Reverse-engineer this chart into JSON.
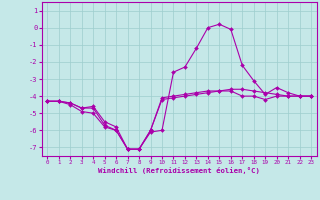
{
  "xlabel": "Windchill (Refroidissement éolien,°C)",
  "x_ticks": [
    0,
    1,
    2,
    3,
    4,
    5,
    6,
    7,
    8,
    9,
    10,
    11,
    12,
    13,
    14,
    15,
    16,
    17,
    18,
    19,
    20,
    21,
    22,
    23
  ],
  "ylim": [
    -7.5,
    1.5
  ],
  "xlim": [
    -0.5,
    23.5
  ],
  "yticks": [
    1,
    0,
    -1,
    -2,
    -3,
    -4,
    -5,
    -6,
    -7
  ],
  "bg_color": "#c5e8e8",
  "line_color": "#aa00aa",
  "grid_color": "#9ecece",
  "axis_color": "#aa00aa",
  "line1_x": [
    0,
    1,
    2,
    3,
    4,
    5,
    6,
    7,
    8,
    9,
    10,
    11,
    12,
    13,
    14,
    15,
    16,
    17,
    18,
    19,
    20,
    21,
    22,
    23
  ],
  "line1_y": [
    -4.3,
    -4.3,
    -4.4,
    -4.7,
    -4.6,
    -5.5,
    -5.8,
    -7.1,
    -7.1,
    -6.1,
    -6.0,
    -2.6,
    -2.3,
    -1.2,
    0.0,
    0.2,
    -0.1,
    -2.2,
    -3.1,
    -3.9,
    -3.5,
    -3.8,
    -4.0,
    -4.0
  ],
  "line2_x": [
    0,
    1,
    2,
    3,
    4,
    5,
    6,
    7,
    8,
    9,
    10,
    11,
    12,
    13,
    14,
    15,
    16,
    17,
    18,
    19,
    20,
    21,
    22,
    23
  ],
  "line2_y": [
    -4.3,
    -4.3,
    -4.4,
    -4.7,
    -4.7,
    -5.7,
    -6.0,
    -7.1,
    -7.1,
    -6.0,
    -4.1,
    -4.0,
    -3.9,
    -3.8,
    -3.7,
    -3.7,
    -3.6,
    -3.6,
    -3.7,
    -3.8,
    -3.9,
    -4.0,
    -4.0,
    -4.0
  ],
  "line3_x": [
    0,
    1,
    2,
    3,
    4,
    5,
    6,
    7,
    8,
    9,
    10,
    11,
    12,
    13,
    14,
    15,
    16,
    17,
    18,
    19,
    20,
    21,
    22,
    23
  ],
  "line3_y": [
    -4.3,
    -4.3,
    -4.5,
    -4.9,
    -5.0,
    -5.8,
    -6.0,
    -7.1,
    -7.1,
    -6.0,
    -4.2,
    -4.1,
    -4.0,
    -3.9,
    -3.8,
    -3.7,
    -3.7,
    -4.0,
    -4.0,
    -4.2,
    -4.0,
    -4.0,
    -4.0,
    -4.0
  ]
}
